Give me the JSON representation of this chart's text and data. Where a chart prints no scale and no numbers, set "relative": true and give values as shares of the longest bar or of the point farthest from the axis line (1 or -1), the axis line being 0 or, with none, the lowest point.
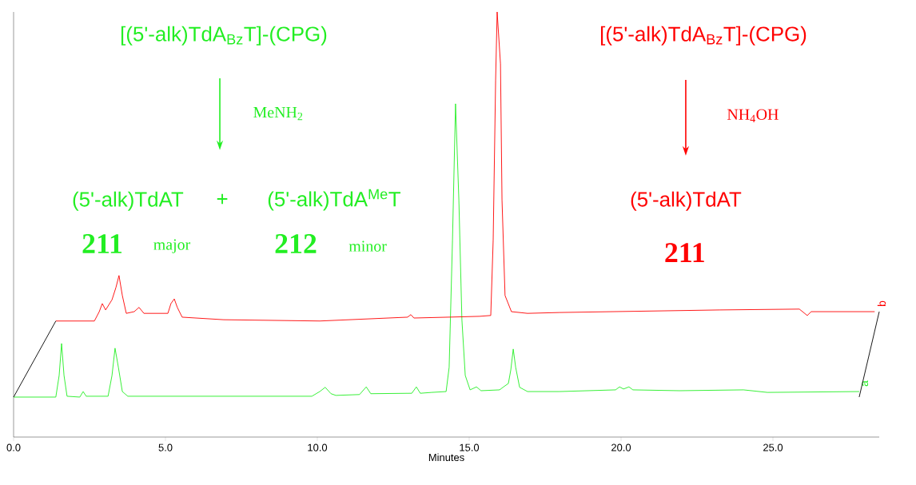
{
  "chart_data": {
    "type": "line",
    "relative": true,
    "xlabel": "Minutes",
    "xlim": [
      0,
      28.5
    ],
    "xticks": [
      {
        "value": 0,
        "label": "0.0"
      },
      {
        "value": 5,
        "label": "5.0"
      },
      {
        "value": 10,
        "label": "10.0"
      },
      {
        "value": 15,
        "label": "15.0"
      },
      {
        "value": 20,
        "label": "20.0"
      },
      {
        "value": 25,
        "label": "25.0"
      }
    ],
    "series": [
      {
        "name": "a",
        "color": "#22ee22",
        "x": [
          0,
          1.39,
          1.5,
          1.58,
          1.66,
          1.76,
          2.18,
          2.29,
          2.39,
          3.11,
          3.24,
          3.34,
          3.45,
          3.58,
          3.76,
          9.82,
          10.08,
          10.26,
          10.45,
          10.61,
          11.39,
          11.61,
          11.76,
          13.11,
          13.26,
          13.39,
          13.76,
          14.24,
          14.34,
          14.45,
          14.55,
          14.66,
          14.76,
          14.87,
          15.03,
          15.24,
          15.39,
          16.0,
          16.13,
          16.29,
          16.37,
          16.45,
          16.53,
          16.66,
          16.92,
          17.97,
          19.82,
          19.95,
          20.08,
          20.26,
          20.39,
          21.92,
          24.03,
          24.82,
          27.84
        ],
        "values": [
          0.094,
          0.094,
          0.145,
          0.22,
          0.145,
          0.096,
          0.094,
          0.107,
          0.096,
          0.096,
          0.145,
          0.209,
          0.164,
          0.107,
          0.096,
          0.096,
          0.107,
          0.117,
          0.102,
          0.098,
          0.1,
          0.118,
          0.102,
          0.103,
          0.118,
          0.103,
          0.105,
          0.107,
          0.164,
          0.464,
          0.784,
          0.558,
          0.276,
          0.145,
          0.111,
          0.118,
          0.109,
          0.111,
          0.118,
          0.126,
          0.158,
          0.207,
          0.164,
          0.117,
          0.107,
          0.107,
          0.111,
          0.118,
          0.113,
          0.118,
          0.111,
          0.109,
          0.111,
          0.105,
          0.107
        ]
      },
      {
        "name": "b",
        "color": "#ff0000",
        "x": [
          1.39,
          2.66,
          2.82,
          2.92,
          3.03,
          3.24,
          3.37,
          3.47,
          3.58,
          3.71,
          3.97,
          4.13,
          4.29,
          5.08,
          5.18,
          5.29,
          5.39,
          5.55,
          6.92,
          10.08,
          12.97,
          13.08,
          13.18,
          14.29,
          15.34,
          15.71,
          15.79,
          15.87,
          15.92,
          16.03,
          16.08,
          16.18,
          16.39,
          16.92,
          17.97,
          23.24,
          25.87,
          26.13,
          26.26,
          28.35
        ],
        "values": [
          0.273,
          0.273,
          0.295,
          0.314,
          0.299,
          0.323,
          0.352,
          0.38,
          0.333,
          0.291,
          0.295,
          0.305,
          0.291,
          0.291,
          0.314,
          0.325,
          0.305,
          0.282,
          0.276,
          0.273,
          0.282,
          0.288,
          0.28,
          0.282,
          0.284,
          0.286,
          0.464,
          0.84,
          1,
          0.878,
          0.558,
          0.333,
          0.295,
          0.291,
          0.293,
          0.299,
          0.301,
          0.286,
          0.295,
          0.295
        ]
      },
      {
        "color": "#000000",
        "x": [
          0,
          1.39
        ],
        "values": [
          0.094,
          0.273
        ]
      },
      {
        "color": "#000000",
        "x": [
          27.84,
          28.5
        ],
        "values": [
          0.094,
          0.295
        ]
      }
    ],
    "annotations": [
      "[(5'-alk)TdA$_{Bz}$T]-(CPG)",
      "MeNH$_{2}$",
      "(5'-alk)TdAT",
      "+",
      "(5'-alk)TdA$^{Me}$T",
      "211",
      "major",
      "212",
      "minor",
      "[(5'-alk)TdA$_{Bz}$T]-(CPG)",
      "NH$_{4}$OH",
      "(5'-alk)TdAT",
      "211"
    ]
  }
}
